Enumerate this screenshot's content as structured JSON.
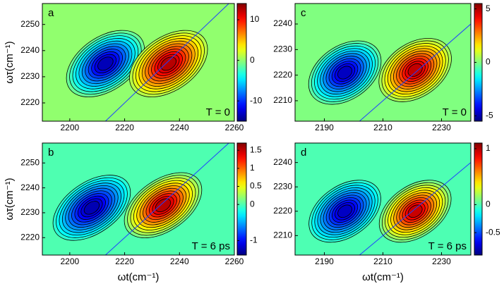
{
  "chart_data": [
    {
      "type": "contour",
      "panel_label": "a",
      "annotation": "T = 0",
      "ylabel": "ωτ(cm⁻¹)",
      "xlim": [
        2190,
        2260
      ],
      "xticks": [
        2200,
        2220,
        2240,
        2260
      ],
      "ylim": [
        2213,
        2258
      ],
      "yticks": [
        2220,
        2230,
        2240,
        2250
      ],
      "clim": [
        -15,
        14
      ],
      "cticks": [
        -10,
        0,
        10
      ],
      "peaks": [
        {
          "x": 2213,
          "y": 2235,
          "value": -14
        },
        {
          "x": 2236,
          "y": 2235,
          "value": 13
        }
      ]
    },
    {
      "type": "contour",
      "panel_label": "b",
      "annotation": "T = 6 ps",
      "ylabel": "ωτ(cm⁻¹)",
      "xlabel": "ωt(cm⁻¹)",
      "xlim": [
        2190,
        2260
      ],
      "xticks": [
        2200,
        2220,
        2240,
        2260
      ],
      "ylim": [
        2213,
        2258
      ],
      "yticks": [
        2220,
        2230,
        2240,
        2250
      ],
      "clim": [
        -1.4,
        1.7
      ],
      "cticks": [
        -1,
        0,
        0.5,
        1,
        1.5
      ],
      "peaks": [
        {
          "x": 2208,
          "y": 2232,
          "value": -1.3
        },
        {
          "x": 2234,
          "y": 2233,
          "value": 1.6
        }
      ]
    },
    {
      "type": "contour",
      "panel_label": "c",
      "annotation": "T = 0",
      "xlim": [
        2180,
        2240
      ],
      "xticks": [
        2190,
        2210,
        2230
      ],
      "ylim": [
        2202,
        2248
      ],
      "yticks": [
        2210,
        2220,
        2230,
        2240
      ],
      "clim": [
        -5.5,
        5.5
      ],
      "cticks": [
        -5,
        0,
        5
      ],
      "peaks": [
        {
          "x": 2197,
          "y": 2221,
          "value": -5
        },
        {
          "x": 2221,
          "y": 2222,
          "value": 5
        }
      ]
    },
    {
      "type": "contour",
      "panel_label": "d",
      "annotation": "T = 6 ps",
      "xlabel": "ωt(cm⁻¹)",
      "xlim": [
        2180,
        2240
      ],
      "xticks": [
        2190,
        2210,
        2230
      ],
      "ylim": [
        2202,
        2248
      ],
      "yticks": [
        2210,
        2220,
        2230,
        2240
      ],
      "clim": [
        -0.9,
        1.1
      ],
      "cticks": [
        -0.5,
        0,
        1
      ],
      "peaks": [
        {
          "x": 2197,
          "y": 2220,
          "value": -0.8
        },
        {
          "x": 2221,
          "y": 2220,
          "value": 1.0
        }
      ]
    }
  ]
}
